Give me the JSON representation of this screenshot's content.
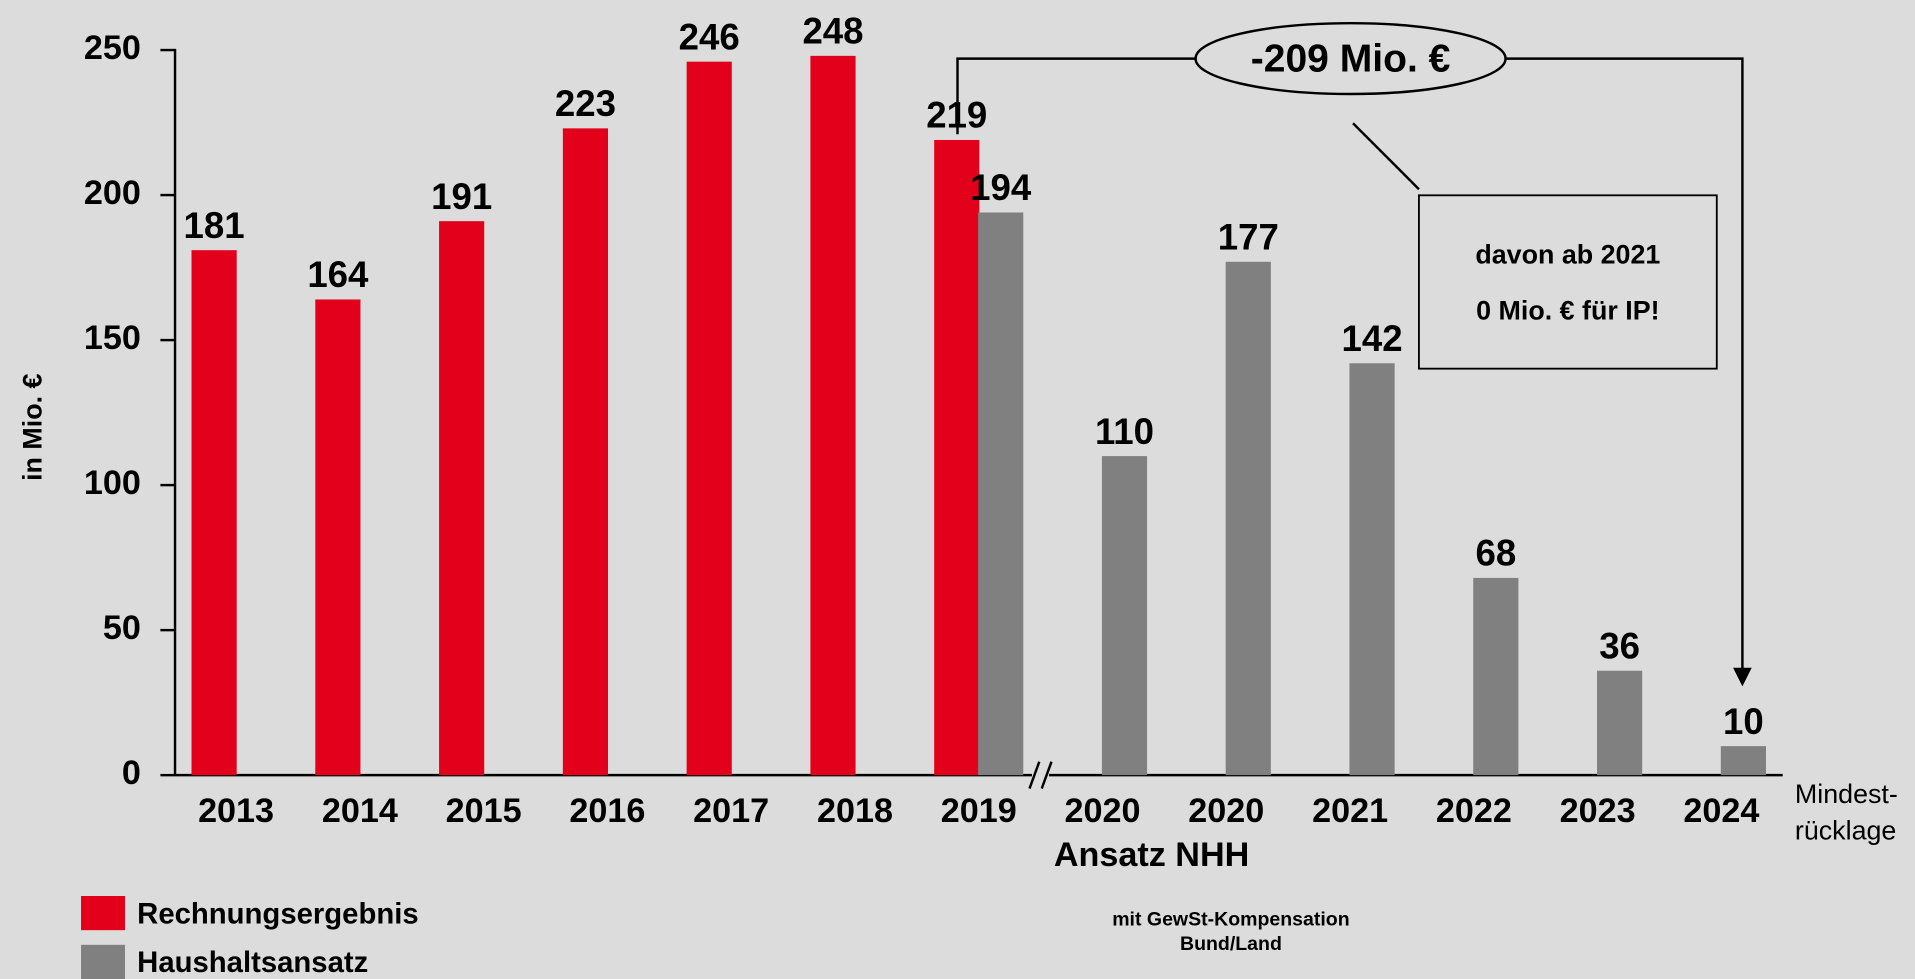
{
  "chart_data": {
    "type": "bar",
    "y_label": "in Mio. €",
    "categories": [
      "2013",
      "2014",
      "2015",
      "2016",
      "2017",
      "2018",
      "2019",
      "2020",
      "2020",
      "2021",
      "2022",
      "2023",
      "2024"
    ],
    "series": [
      {
        "name": "Rechnungsergebnis",
        "color": "#e2001a",
        "values": [
          181,
          164,
          191,
          223,
          246,
          248,
          219,
          null,
          null,
          null,
          null,
          null,
          null
        ]
      },
      {
        "name": "Haushaltsansatz",
        "color": "#808080",
        "values": [
          null,
          null,
          null,
          null,
          null,
          null,
          194,
          110,
          177,
          142,
          68,
          36,
          10
        ]
      }
    ],
    "ylim": [
      0,
      250
    ],
    "yticks": [
      0,
      50,
      100,
      150,
      200,
      250
    ],
    "grid": false,
    "annotations": {
      "difference": "-209 Mio. €",
      "box_line1": "davon ab 2021",
      "box_line2": "0 Mio. € für IP!",
      "sub_category": "Ansatz  NHH",
      "end_label1": "Mindest-",
      "end_label2": "rücklage",
      "note1": "mit GewSt-Kompensation",
      "note2": "Bund/Land"
    }
  }
}
